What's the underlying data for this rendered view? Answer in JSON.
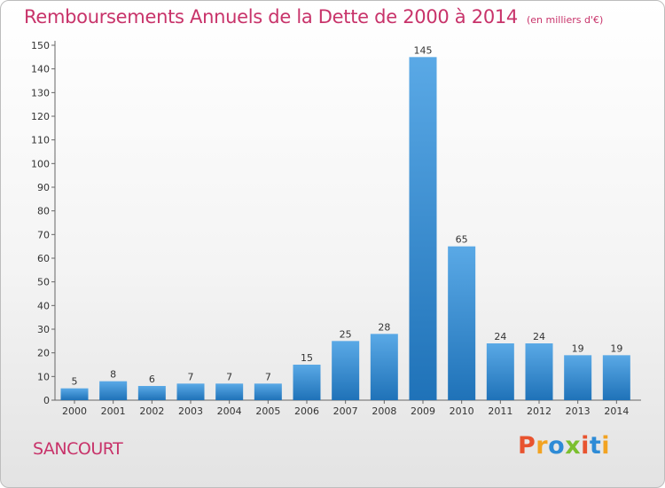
{
  "header": {
    "title": "Remboursements Annuels de la Dette de 2000 à 2014",
    "subtitle": "(en milliers d'€)"
  },
  "footer": {
    "place": "SANCOURT",
    "logo": "Proxiti"
  },
  "colors": {
    "title": "#c8336a",
    "bar_top": "#5aa9e6",
    "bar_bottom": "#1f72b8",
    "logo_letters": [
      "#e8532f",
      "#f2a322",
      "#2e8bd6",
      "#7bbf2e",
      "#e8532f",
      "#2e8bd6",
      "#f2a322"
    ]
  },
  "chart_data": {
    "type": "bar",
    "title": "Remboursements Annuels de la Dette de 2000 à 2014",
    "subtitle": "(en milliers d'€)",
    "categories": [
      "2000",
      "2001",
      "2002",
      "2003",
      "2004",
      "2005",
      "2006",
      "2007",
      "2008",
      "2009",
      "2010",
      "2011",
      "2012",
      "2013",
      "2014"
    ],
    "values": [
      5,
      8,
      6,
      7,
      7,
      7,
      15,
      25,
      28,
      145,
      65,
      24,
      24,
      19,
      19
    ],
    "ylim": [
      0,
      150
    ],
    "yticks": [
      0,
      10,
      20,
      30,
      40,
      50,
      60,
      70,
      80,
      90,
      100,
      110,
      120,
      130,
      140,
      150
    ],
    "grid": false,
    "xlabel": "",
    "ylabel": ""
  }
}
